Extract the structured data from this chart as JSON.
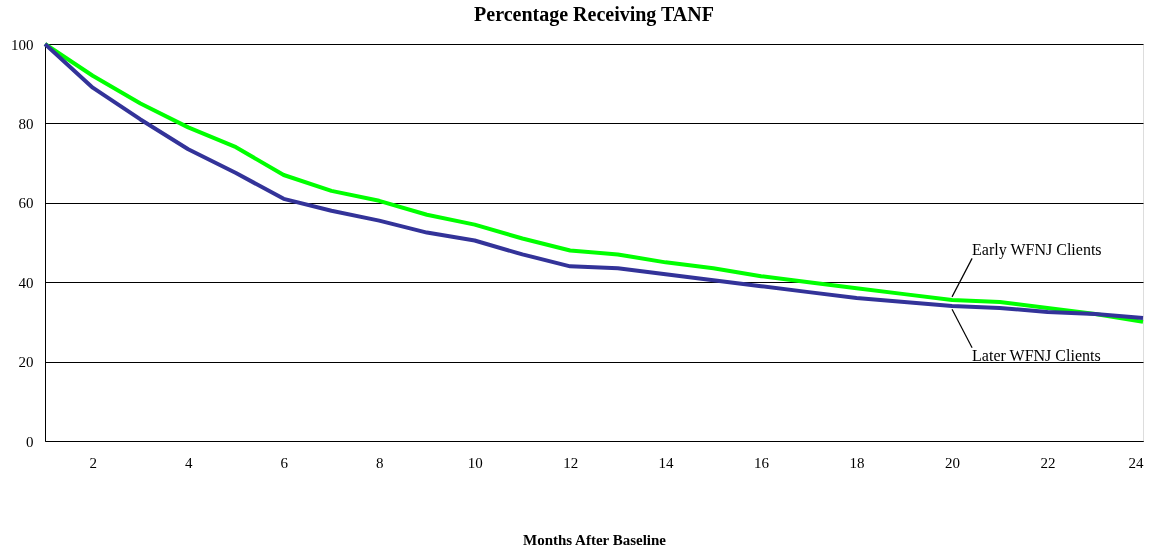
{
  "chart_data": {
    "type": "line",
    "title": "Percentage Receiving TANF",
    "xlabel": "Months After Baseline",
    "x": [
      1,
      2,
      3,
      4,
      5,
      6,
      7,
      8,
      9,
      10,
      11,
      12,
      13,
      14,
      15,
      16,
      17,
      18,
      19,
      20,
      21,
      22,
      23,
      24
    ],
    "series": [
      {
        "name": "Early WFNJ Clients",
        "color": "#00ff00",
        "values": [
          100,
          92,
          85,
          79,
          74,
          67,
          63,
          60.5,
          57,
          54.5,
          51,
          48,
          47,
          45,
          43.5,
          41.5,
          40,
          38.5,
          37,
          35.5,
          35,
          33.5,
          32,
          30
        ]
      },
      {
        "name": "Later WFNJ Clients",
        "color": "#333399",
        "values": [
          100,
          89,
          81,
          73.5,
          67.5,
          61,
          58,
          55.5,
          52.5,
          50.5,
          47,
          44,
          43.5,
          42,
          40.5,
          39,
          37.5,
          36,
          35,
          34,
          33.5,
          32.5,
          32,
          31
        ]
      }
    ],
    "xlim": [
      1,
      24
    ],
    "xticks": [
      2,
      4,
      6,
      8,
      10,
      12,
      14,
      16,
      18,
      20,
      22,
      24
    ],
    "ylim": [
      0,
      100
    ],
    "yticks": [
      0,
      20,
      40,
      60,
      80,
      100
    ],
    "grid": "y",
    "legend": false,
    "marker": "none",
    "line_style": "solid"
  }
}
